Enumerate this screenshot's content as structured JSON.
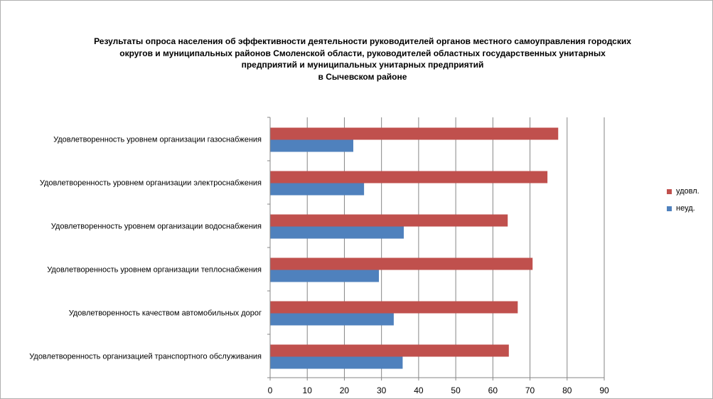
{
  "chart_data": {
    "type": "bar",
    "orientation": "horizontal",
    "title_lines": [
      "Результаты опроса населения об эффективности деятельности руководителей органов местного самоуправления городских",
      "округов и муниципальных районов Смоленской области, руководителей областных государственных унитарных",
      "предприятий и муниципальных унитарных предприятий",
      "в Сычевском районе"
    ],
    "categories": [
      "Удовлетворенность  уровнем  организации газоснабжения",
      "Удовлетворенность  уровнем  организации электроснабжения",
      "Удовлетворенность  уровнем  организации водоснабжения",
      "Удовлетворенность  уровнем  организации теплоснабжения",
      "Удовлетворенность  качеством  автомобильных дорог",
      "Удовлетворенность  организацией транспортного обслуживания"
    ],
    "series": [
      {
        "name": "удовл.",
        "color": "#c0504d",
        "values": [
          77.6,
          74.7,
          64.0,
          70.7,
          66.7,
          64.3
        ]
      },
      {
        "name": "неуд.",
        "color": "#4f81bd",
        "values": [
          22.4,
          25.3,
          36.0,
          29.3,
          33.3,
          35.7
        ]
      }
    ],
    "xlim": [
      0,
      90
    ],
    "xticks": [
      "0",
      "10",
      "20",
      "30",
      "40",
      "50",
      "60",
      "70",
      "80",
      "90"
    ],
    "grid": true,
    "legend_position": "right"
  }
}
